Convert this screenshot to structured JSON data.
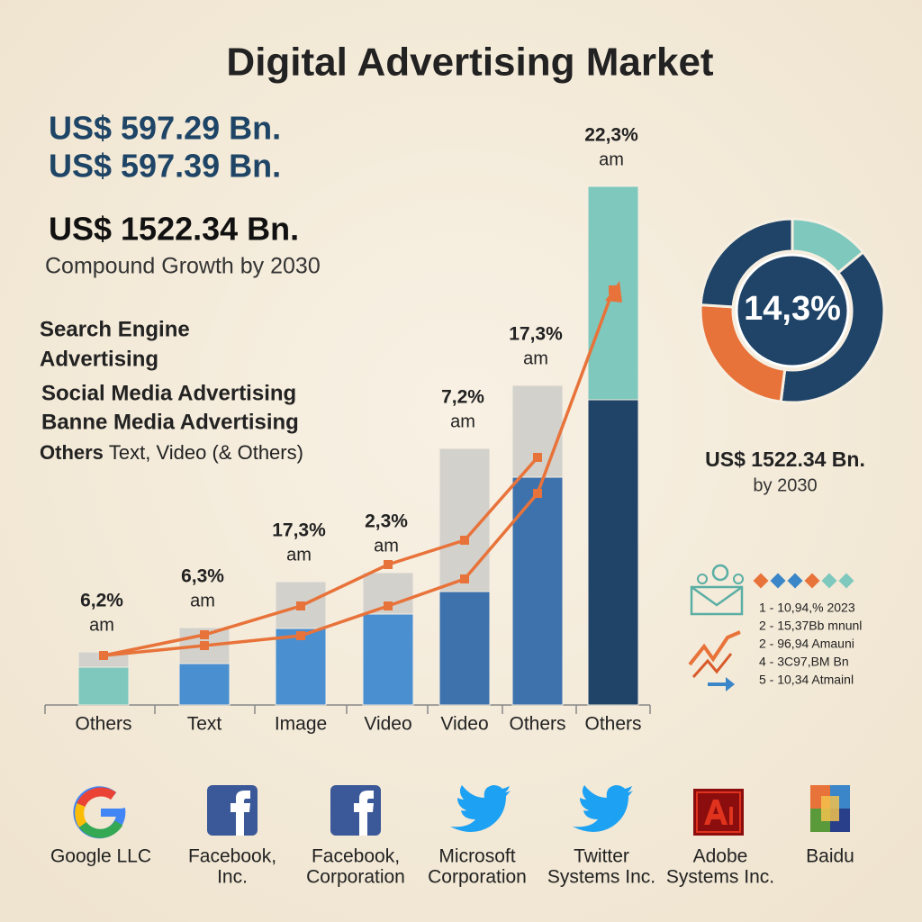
{
  "title": "Digital Advertising Market",
  "stats": [
    "US$ 597.29 Bn.",
    "US$ 597.39 Bn.",
    "US$ 1522.34 Bn."
  ],
  "stats_note": "Compound Growth by 2030",
  "segments": [
    [
      "Search Engine",
      "Advertising"
    ],
    [
      "Social Media Advertising"
    ],
    [
      "Banne Media Advertising"
    ],
    [
      "Others",
      "Text, Video (& Others)"
    ]
  ],
  "chart_data": [
    {
      "type": "bar",
      "stacked": true,
      "categories": [
        "Others",
        "Text",
        "Image",
        "Video",
        "Video",
        "Others",
        "Others"
      ],
      "ylim": [
        0,
        600
      ],
      "series": [
        {
          "values": [
            42,
            46,
            85,
            101,
            126,
            253,
            339
          ],
          "colors": [
            "#7ec8bd",
            "#4a90d0",
            "#4a90d0",
            "#4a90d0",
            "#3e72ad",
            "#3e72ad",
            "#1f4468"
          ]
        },
        {
          "values": [
            17,
            40,
            52,
            46,
            159,
            102,
            237
          ],
          "colors": [
            "#d3d1cc",
            "#d3d1cc",
            "#d3d1cc",
            "#d3d1cc",
            "#d3d1cc",
            "#d3d1cc",
            "#7ec8bd"
          ]
        },
        {
          "type": "line",
          "color": "#e8733a",
          "values": [
            55,
            78,
            110,
            156,
            183,
            275,
            null
          ]
        },
        {
          "type": "line",
          "color": "#e8733a",
          "values": [
            55,
            66,
            77,
            110,
            140,
            235,
            461
          ]
        }
      ],
      "bar_labels": [
        {
          "rate": "6,2%",
          "unit": "am"
        },
        {
          "rate": "6,3%",
          "unit": "am"
        },
        {
          "rate": "17,3%",
          "unit": "am"
        },
        {
          "rate": "2,3%",
          "unit": "am"
        },
        {
          "rate": "7,2%",
          "unit": "am"
        },
        {
          "rate": "17,3%",
          "unit": "am"
        },
        {
          "rate": "22,3%",
          "unit": "am"
        }
      ]
    },
    {
      "type": "pie",
      "donut": true,
      "center_label": "14,3%",
      "values": [
        14,
        38,
        24,
        24
      ],
      "colors": [
        "#7ec8bd",
        "#1f4468",
        "#e8733a",
        "#1f4468"
      ]
    }
  ],
  "donut_footer": {
    "value": "US$ 1522.34 Bn.",
    "note": "by 2030"
  },
  "legend_list": [
    "1 - 10,94,% 2023",
    "2 - 15,37Bb mnunl",
    "2 - 96,94 Amauni",
    "4 - 3C97,BM Bn",
    "5 - 10,34 Atmainl"
  ],
  "companies": [
    [
      "Google LLC"
    ],
    [
      "Facebook,",
      "Inc."
    ],
    [
      "Facebook,",
      "Corporation"
    ],
    [
      "Microsoft",
      "Corporation"
    ],
    [
      "Twitter",
      "Systems Inc."
    ],
    [
      "Adobe",
      "Systems Inc."
    ],
    [
      "Baidu"
    ]
  ]
}
